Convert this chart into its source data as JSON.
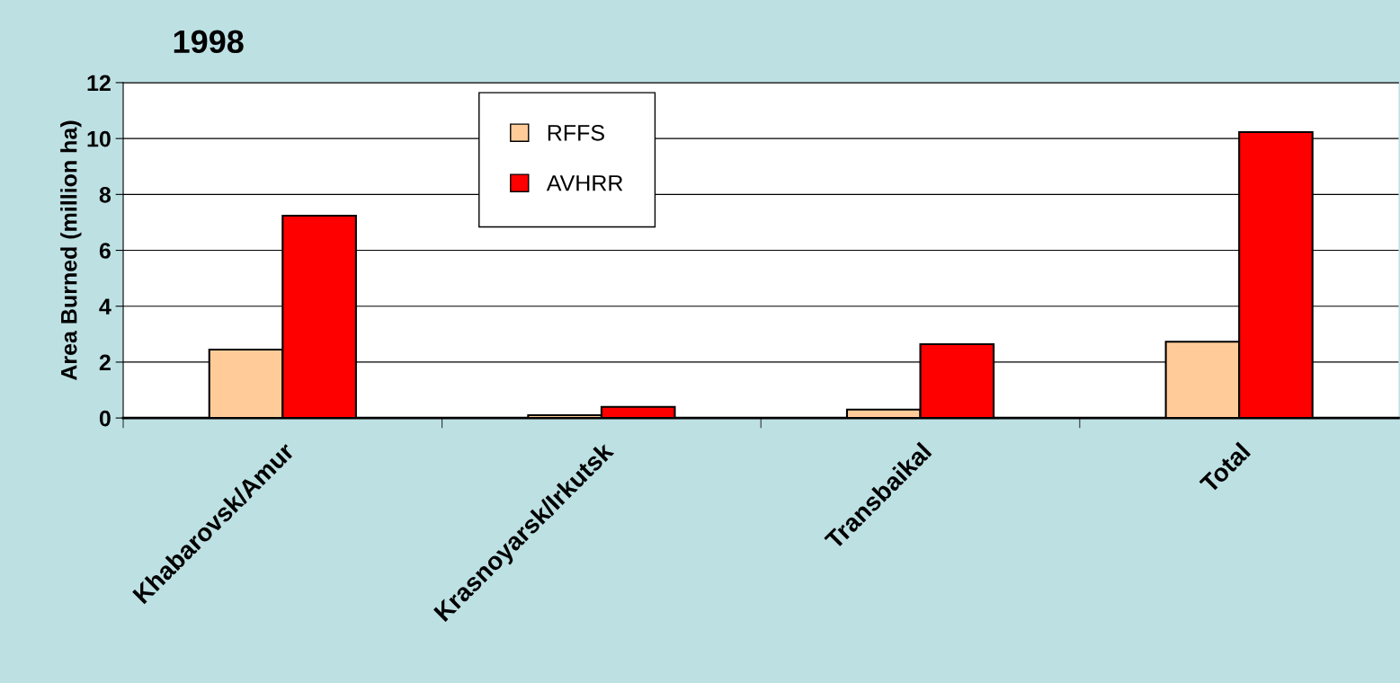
{
  "chart_data": {
    "type": "bar",
    "title": "1998",
    "ylabel": "Area Burned (million ha)",
    "categories": [
      "Khabarovsk/Amur",
      "Krasnoyarsk/Irkutsk",
      "Transbaikal",
      "Total"
    ],
    "series": [
      {
        "name": "RFFS",
        "color": "#ffcc99",
        "values": [
          2.45,
          0.1,
          0.3,
          2.73
        ]
      },
      {
        "name": "AVHRR",
        "color": "#ff0000",
        "values": [
          7.24,
          0.4,
          2.64,
          10.23
        ]
      }
    ],
    "ylim": [
      0,
      12
    ],
    "yticks": [
      0,
      2,
      4,
      6,
      8,
      10,
      12
    ],
    "grid": "y",
    "legend": "top"
  }
}
